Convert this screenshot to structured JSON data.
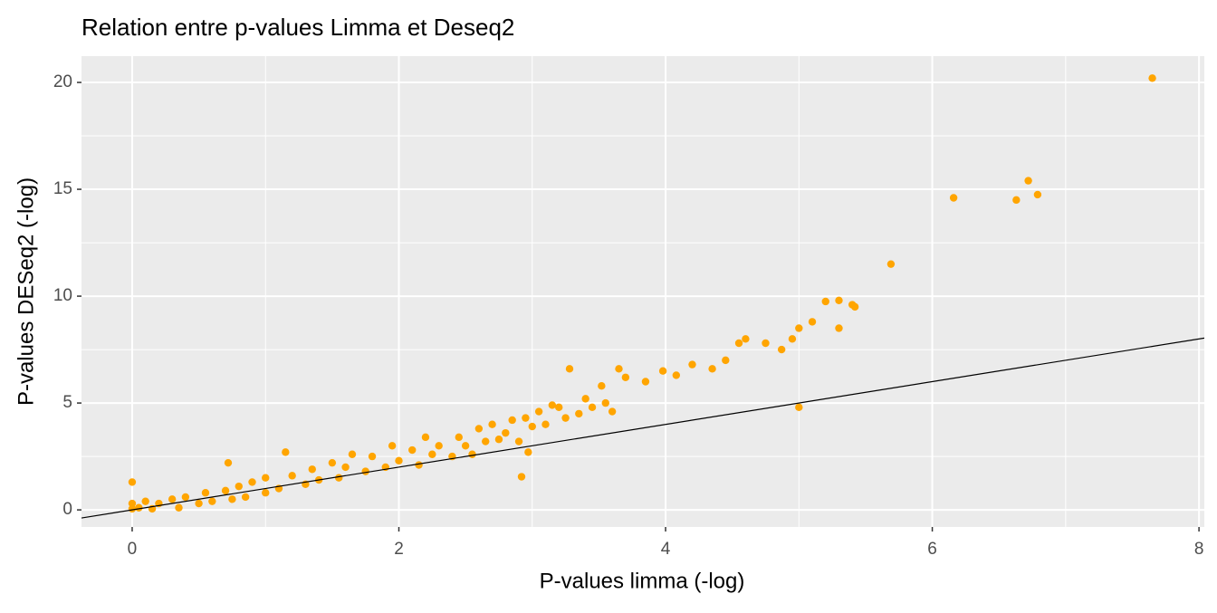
{
  "chart_data": {
    "type": "scatter",
    "title": "Relation entre p-values Limma et Deseq2",
    "x_label": "P-values limma (-log)",
    "y_label": "P-values DESeq2 (-log)",
    "xlim": [
      -0.38,
      8.04
    ],
    "ylim": [
      -0.8,
      21.23
    ],
    "xticks": [
      0,
      2,
      4,
      6,
      8
    ],
    "yticks": [
      0,
      5,
      10,
      15,
      20
    ],
    "x_minor_grid": [
      1,
      3,
      5,
      7
    ],
    "y_minor_grid": [
      2.5,
      7.5,
      12.5,
      17.5
    ],
    "grid": true,
    "reference_line": {
      "slope": 1,
      "intercept": 0,
      "color": "#000000"
    },
    "x": [
      0,
      0,
      0,
      0.05,
      0.1,
      0.15,
      0.2,
      0.3,
      0.35,
      0.4,
      0.5,
      0.55,
      0.6,
      0.7,
      0.72,
      0.75,
      0.8,
      0.85,
      0.9,
      1.0,
      1.0,
      1.1,
      1.15,
      1.2,
      1.3,
      1.35,
      1.4,
      1.5,
      1.55,
      1.6,
      1.65,
      1.75,
      1.8,
      1.9,
      1.95,
      2.0,
      2.1,
      2.15,
      2.2,
      2.25,
      2.3,
      2.4,
      2.45,
      2.5,
      2.55,
      2.6,
      2.65,
      2.7,
      2.75,
      2.8,
      2.85,
      2.9,
      2.92,
      2.95,
      2.97,
      3.0,
      3.05,
      3.1,
      3.15,
      3.2,
      3.25,
      3.28,
      3.35,
      3.4,
      3.45,
      3.52,
      3.55,
      3.6,
      3.65,
      3.7,
      3.85,
      3.98,
      4.08,
      4.2,
      4.35,
      4.45,
      4.55,
      4.6,
      4.75,
      4.87,
      4.95,
      5.0,
      5.0,
      5.1,
      5.2,
      5.3,
      5.3,
      5.4,
      5.42,
      5.69,
      6.16,
      6.63,
      6.72,
      6.79,
      7.65
    ],
    "series": [
      {
        "color": "#FFA500",
        "values": [
          0.05,
          0.3,
          1.3,
          0.1,
          0.4,
          0.05,
          0.3,
          0.5,
          0.1,
          0.6,
          0.3,
          0.8,
          0.4,
          0.9,
          2.2,
          0.5,
          1.1,
          0.6,
          1.3,
          0.8,
          1.5,
          1.0,
          2.7,
          1.6,
          1.2,
          1.9,
          1.4,
          2.2,
          1.5,
          2.0,
          2.6,
          1.8,
          2.5,
          2.0,
          3.0,
          2.3,
          2.8,
          2.1,
          3.4,
          2.6,
          3.0,
          2.5,
          3.4,
          3.0,
          2.6,
          3.8,
          3.2,
          4.0,
          3.3,
          3.6,
          4.2,
          3.2,
          1.55,
          4.3,
          2.7,
          3.9,
          4.6,
          4.0,
          4.9,
          4.8,
          4.3,
          6.6,
          4.5,
          5.2,
          4.8,
          5.8,
          5.0,
          4.6,
          6.6,
          6.2,
          6.0,
          6.5,
          6.3,
          6.8,
          6.6,
          7.0,
          7.8,
          8.0,
          7.8,
          7.5,
          8.0,
          8.5,
          4.8,
          8.8,
          9.75,
          9.8,
          8.5,
          9.6,
          9.5,
          11.5,
          14.6,
          14.5,
          15.4,
          14.75,
          20.2
        ]
      }
    ]
  }
}
